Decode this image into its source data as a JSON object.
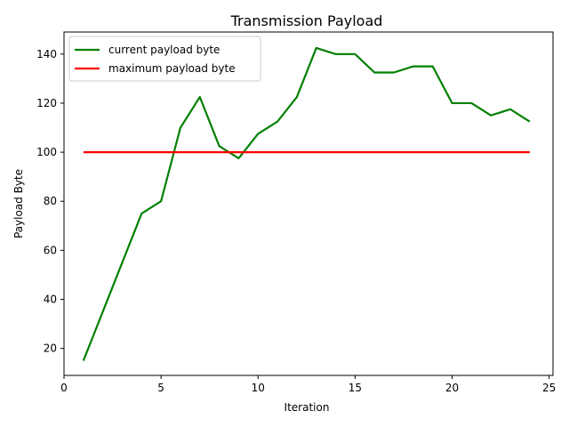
{
  "chart_data": {
    "type": "line",
    "title": "Transmission Payload",
    "xlabel": "Iteration",
    "ylabel": "Payload Byte",
    "xlim": [
      0,
      25.2
    ],
    "ylim": [
      9,
      149
    ],
    "xticks": [
      0,
      5,
      10,
      15,
      20,
      25
    ],
    "yticks": [
      20,
      40,
      60,
      80,
      100,
      120,
      140
    ],
    "xtick_labels": [
      "0",
      "5",
      "10",
      "15",
      "20",
      "25"
    ],
    "ytick_labels": [
      "20",
      "40",
      "60",
      "80",
      "100",
      "120",
      "140"
    ],
    "grid": false,
    "legend_position": "top-left",
    "series": [
      {
        "name": "current payload byte",
        "color": "#008000",
        "x": [
          1,
          2,
          3,
          4,
          5,
          6,
          7,
          8,
          9,
          10,
          11,
          12,
          13,
          14,
          15,
          16,
          17,
          18,
          19,
          20,
          21,
          22,
          23,
          24
        ],
        "y": [
          15,
          35,
          55,
          75,
          80,
          110,
          122.5,
          102.5,
          97.5,
          107.5,
          112.5,
          122.5,
          142.5,
          140,
          140,
          132.5,
          132.5,
          135,
          135,
          120,
          120,
          115,
          117.5,
          112.5
        ]
      },
      {
        "name": "maximum payload byte",
        "color": "#ff0000",
        "x": [
          1,
          2,
          3,
          4,
          5,
          6,
          7,
          8,
          9,
          10,
          11,
          12,
          13,
          14,
          15,
          16,
          17,
          18,
          19,
          20,
          21,
          22,
          23,
          24
        ],
        "y": [
          100,
          100,
          100,
          100,
          100,
          100,
          100,
          100,
          100,
          100,
          100,
          100,
          100,
          100,
          100,
          100,
          100,
          100,
          100,
          100,
          100,
          100,
          100,
          100
        ]
      }
    ]
  }
}
